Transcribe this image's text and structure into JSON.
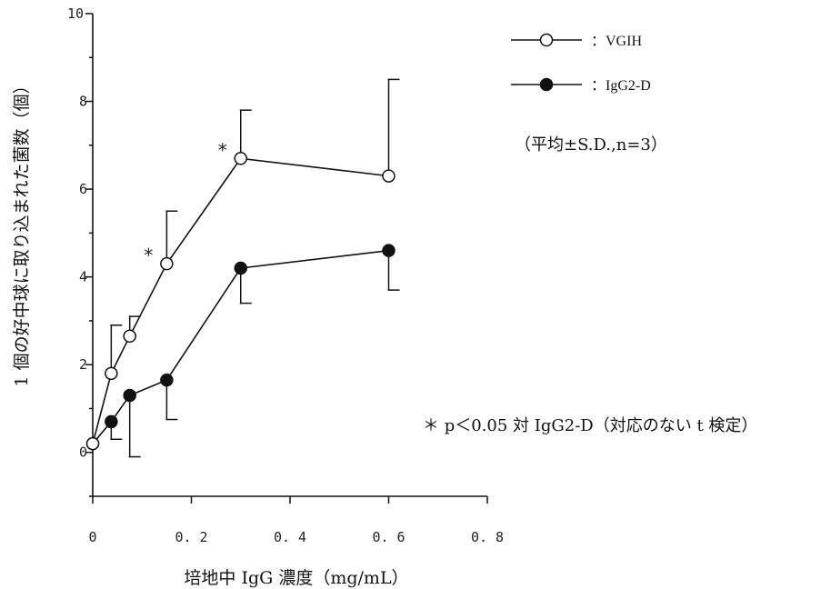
{
  "chart_data": {
    "type": "line",
    "xlabel": "培地中 IgG 濃度（mg/mL）",
    "ylabel": "1 個の好中球に取り込まれた菌数（個）",
    "xlim": [
      0,
      0.8
    ],
    "ylim": [
      -1,
      10
    ],
    "x_ticks": [
      0,
      0.2,
      0.4,
      0.6,
      0.8
    ],
    "x_tick_labels": [
      "0",
      "0. 2",
      "0. 4",
      "0. 6",
      "0. 8"
    ],
    "y_ticks": [
      0,
      2,
      4,
      6,
      8,
      10
    ],
    "y_tick_labels": [
      "0",
      "2",
      "4",
      "6",
      "8",
      "10"
    ],
    "grid": false,
    "legend_position": "top-right",
    "series": [
      {
        "name": "：VGIH",
        "marker": "open-circle",
        "x": [
          0,
          0.0375,
          0.075,
          0.15,
          0.3,
          0.6
        ],
        "y": [
          0.2,
          1.8,
          2.65,
          4.3,
          6.7,
          6.3
        ],
        "error_upper": [
          null,
          2.9,
          3.1,
          5.5,
          7.8,
          8.5
        ],
        "error_lower": [
          null,
          null,
          null,
          null,
          null,
          null
        ],
        "significant": [
          false,
          false,
          false,
          true,
          true,
          false
        ]
      },
      {
        "name": "：IgG2-D",
        "marker": "filled-circle",
        "x": [
          0,
          0.0375,
          0.075,
          0.15,
          0.3,
          0.6
        ],
        "y": [
          0.2,
          0.7,
          1.3,
          1.65,
          4.2,
          4.6
        ],
        "error_upper": [
          null,
          null,
          null,
          null,
          null,
          null
        ],
        "error_lower": [
          null,
          0.3,
          -0.1,
          0.75,
          3.4,
          3.7
        ],
        "significant": [
          false,
          false,
          false,
          false,
          false,
          false
        ]
      }
    ],
    "significance_mark": "*",
    "annotations": {
      "mean_sd_note": "（平均±S.D.,n=3）",
      "significance_note": "＊ p＜0.05 対 IgG2-D（対応のない t 検定）"
    },
    "colors": {
      "line": "#111111",
      "open_fill": "#ffffff",
      "filled": "#111111"
    }
  }
}
